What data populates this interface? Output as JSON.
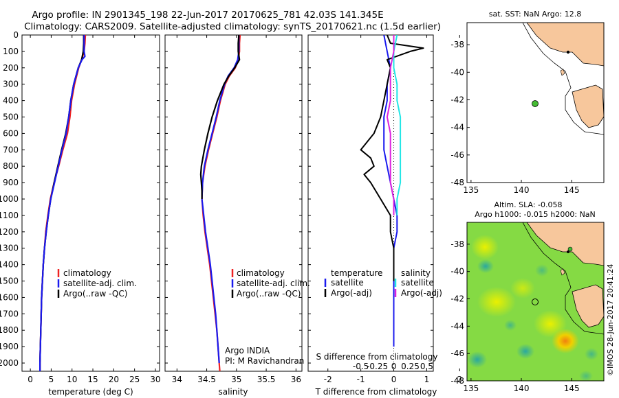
{
  "header": {
    "line1": "Argo profile: IN 2901345_198 22-Jun-2017 20170625_781 42.03S 141.345E",
    "line2": "Climatology: CARS2009. Satellite-adjusted climatology: synTS_20170621.nc (1.5d earlier)"
  },
  "colors": {
    "climatology": "#ee2222",
    "satellite": "#1a1aee",
    "argo": "#000000",
    "sat_salinity": "#22e6e6",
    "argo_salinity_adj": "#dd22dd",
    "land": "#f7c79c",
    "float_marker": "#44bb33"
  },
  "depth_axis": {
    "ylim": [
      0,
      2050
    ],
    "ticks": [
      0,
      100,
      200,
      300,
      400,
      500,
      600,
      700,
      800,
      900,
      1000,
      1100,
      1200,
      1300,
      1400,
      1500,
      1600,
      1700,
      1800,
      1900,
      2000
    ]
  },
  "temp_panel": {
    "xlabel": "temperature (deg C)",
    "xlim": [
      -2,
      31
    ],
    "xticks": [
      0,
      5,
      10,
      15,
      20,
      25,
      30
    ],
    "legend": [
      "climatology",
      "satellite-adj. clim.",
      "Argo(..raw -QC)"
    ]
  },
  "sal_panel": {
    "xlabel": "salinity",
    "xlim": [
      33.8,
      36.1
    ],
    "xticks": [
      "34",
      "34.5",
      "35",
      "35.5",
      "36"
    ],
    "legend": [
      "climatology",
      "satellite-adj. clim.",
      "Argo(..raw -QC)"
    ],
    "note1": "Argo INDIA",
    "note2": "PI: M Ravichandran"
  },
  "diff_panel": {
    "xlabel": "T difference from climatology",
    "s_label": "S difference from climatology",
    "xlim": [
      -2.6,
      1.2
    ],
    "t_ticks": [
      "-2",
      "-1",
      "0",
      "1",
      "2"
    ],
    "s_ticks": [
      "-0.5",
      "-0.25",
      "0",
      "0.25",
      "0.5"
    ],
    "legend_t_title": "temperature",
    "legend_s_title": "salinity",
    "legend_t": [
      "satellite",
      "Argo(-adj)"
    ],
    "legend_s": [
      "satellite",
      "Argo(-adj)"
    ]
  },
  "map_top": {
    "title": "sat. SST: NaN Argo: 12.8",
    "lon_ticks": [
      "135",
      "140",
      "145"
    ],
    "lat_ticks": [
      "-38",
      "-40",
      "-42",
      "-44",
      "-46",
      "-48"
    ]
  },
  "map_bottom": {
    "title1": "Altim. SLA: -0.058",
    "title2": "Argo h1000: -0.015 h2000: NaN",
    "lon_ticks": [
      "135",
      "140",
      "145"
    ],
    "lat_ticks": [
      "-38",
      "-40",
      "-42",
      "-44",
      "-46",
      "-48"
    ],
    "credit": "©IMOS 28-Jun-2017 20:41:24"
  },
  "chart_data": [
    {
      "type": "line",
      "title": "",
      "xlabel": "temperature (deg C)",
      "ylabel": "",
      "xlim": [
        -2,
        31
      ],
      "ylim": [
        2050,
        0
      ],
      "series": [
        {
          "name": "climatology",
          "y": [
            0,
            50,
            100,
            150,
            200,
            300,
            400,
            500,
            600,
            700,
            800,
            900,
            1000,
            1100,
            1200,
            1300,
            1400,
            1500,
            1600,
            1700,
            1800,
            1900,
            2000,
            2050
          ],
          "x": [
            13.2,
            13.1,
            12.9,
            12.3,
            11.6,
            10.6,
            9.9,
            9.5,
            8.9,
            7.8,
            6.8,
            5.7,
            4.8,
            4.2,
            3.7,
            3.4,
            3.1,
            2.9,
            2.7,
            2.6,
            2.5,
            2.4,
            2.3,
            2.3
          ]
        },
        {
          "name": "satellite-adj. clim.",
          "y": [
            0,
            50,
            100,
            150,
            200,
            300,
            400,
            500,
            600,
            700,
            800,
            900,
            1000,
            1100,
            1200,
            1300,
            1400,
            1500,
            1600,
            1700,
            1800,
            1900,
            2000,
            2050
          ],
          "x": [
            12.8,
            12.8,
            12.7,
            12.3,
            11.5,
            10.4,
            9.7,
            9.2,
            8.5,
            7.5,
            6.6,
            5.7,
            4.9,
            4.3,
            3.8,
            3.4,
            3.1,
            2.9,
            2.7,
            2.6,
            2.5,
            2.4,
            2.3,
            2.3
          ]
        },
        {
          "name": "Argo(..raw -QC)",
          "y": [
            0,
            50,
            100,
            130,
            150,
            200,
            300,
            400,
            500,
            600,
            700,
            800,
            900,
            1000,
            1100,
            1200,
            1300,
            1400,
            1500,
            1600,
            1700,
            1800,
            1900,
            2000,
            2050
          ],
          "x": [
            12.9,
            12.9,
            12.9,
            13.1,
            12.4,
            11.5,
            10.4,
            9.7,
            9.2,
            8.6,
            7.6,
            6.7,
            5.8,
            4.9,
            4.3,
            3.8,
            3.4,
            3.1,
            2.9,
            2.7,
            2.6,
            2.5,
            2.4,
            2.3,
            2.3
          ]
        }
      ]
    },
    {
      "type": "line",
      "title": "",
      "xlabel": "salinity",
      "ylabel": "",
      "xlim": [
        33.8,
        36.1
      ],
      "ylim": [
        2050,
        0
      ],
      "series": [
        {
          "name": "climatology",
          "y": [
            0,
            50,
            100,
            150,
            200,
            250,
            300,
            400,
            500,
            600,
            700,
            800,
            900,
            1000,
            1100,
            1200,
            1300,
            1400,
            1500,
            1600,
            1700,
            1800,
            1900,
            2000,
            2050
          ],
          "x": [
            35.06,
            35.05,
            35.05,
            35.03,
            34.98,
            34.88,
            34.81,
            34.73,
            34.67,
            34.6,
            34.53,
            34.47,
            34.43,
            34.42,
            34.44,
            34.47,
            34.51,
            34.55,
            34.58,
            34.61,
            34.64,
            34.67,
            34.69,
            34.71,
            34.72
          ]
        },
        {
          "name": "satellite-adj. clim.",
          "y": [
            0,
            50,
            100,
            150,
            200,
            250,
            300,
            400,
            500,
            600,
            700,
            800,
            900,
            1000,
            1100,
            1200,
            1300,
            1400,
            1500,
            1600,
            1700,
            1800,
            1900,
            2000
          ],
          "x": [
            35.04,
            35.04,
            35.04,
            35.02,
            34.96,
            34.86,
            34.8,
            34.72,
            34.66,
            34.59,
            34.52,
            34.46,
            34.43,
            34.42,
            34.45,
            34.48,
            34.52,
            34.56,
            34.59,
            34.62,
            34.65,
            34.67,
            34.69,
            34.71
          ]
        },
        {
          "name": "Argo(..raw -QC)",
          "y": [
            0,
            50,
            100,
            150,
            200,
            250,
            300,
            400,
            500,
            600,
            700,
            800,
            850,
            900,
            950,
            1000
          ],
          "x": [
            35.04,
            35.03,
            35.03,
            35.05,
            34.97,
            34.87,
            34.79,
            34.68,
            34.59,
            34.52,
            34.46,
            34.41,
            34.4,
            34.41,
            34.42,
            34.42
          ]
        }
      ]
    },
    {
      "type": "line",
      "title": "",
      "xlabel": "T difference from climatology",
      "ylabel": "",
      "xlim": [
        -2.6,
        1.2
      ],
      "ylim": [
        2050,
        0
      ],
      "series": [
        {
          "name": "satellite (temperature)",
          "y": [
            0,
            100,
            200,
            300,
            400,
            500,
            600,
            700,
            800,
            900,
            1000,
            1100,
            1200,
            1300,
            1400,
            1500,
            1600,
            1700,
            1800,
            1900
          ],
          "x": [
            -0.3,
            -0.2,
            -0.1,
            -0.2,
            -0.2,
            -0.3,
            -0.3,
            -0.3,
            -0.2,
            -0.1,
            0.0,
            0.1,
            0.1,
            0.0,
            0.0,
            0.0,
            0.0,
            0.0,
            0.0,
            0.0
          ]
        },
        {
          "name": "Argo(-adj) (temperature)",
          "y": [
            0,
            50,
            80,
            100,
            150,
            200,
            300,
            400,
            500,
            600,
            700,
            750,
            800,
            850,
            900,
            1000,
            1100,
            1200,
            1300,
            1400,
            1500
          ],
          "x": [
            -0.2,
            -0.1,
            0.9,
            0.5,
            -0.2,
            -0.1,
            -0.2,
            -0.3,
            -0.4,
            -0.6,
            -1.0,
            -0.7,
            -0.6,
            -0.9,
            -0.7,
            -0.4,
            -0.1,
            -0.1,
            0.0,
            0.0,
            0.0
          ]
        },
        {
          "name": "satellite (salinity)",
          "y": [
            0,
            100,
            200,
            300,
            400,
            500,
            600,
            700,
            800,
            900,
            1000,
            1100
          ],
          "x": [
            0.1,
            0.0,
            0.0,
            0.1,
            0.1,
            0.2,
            0.2,
            0.2,
            0.2,
            0.2,
            0.1,
            0.1
          ]
        },
        {
          "name": "Argo(-adj) (salinity)",
          "y": [
            0,
            100,
            200,
            300,
            400,
            500,
            600,
            700,
            800,
            900,
            1000,
            1100
          ],
          "x": [
            0.0,
            0.0,
            -0.1,
            -0.1,
            -0.1,
            -0.2,
            -0.1,
            -0.1,
            -0.1,
            -0.1,
            0.0,
            0.0
          ]
        }
      ]
    }
  ]
}
